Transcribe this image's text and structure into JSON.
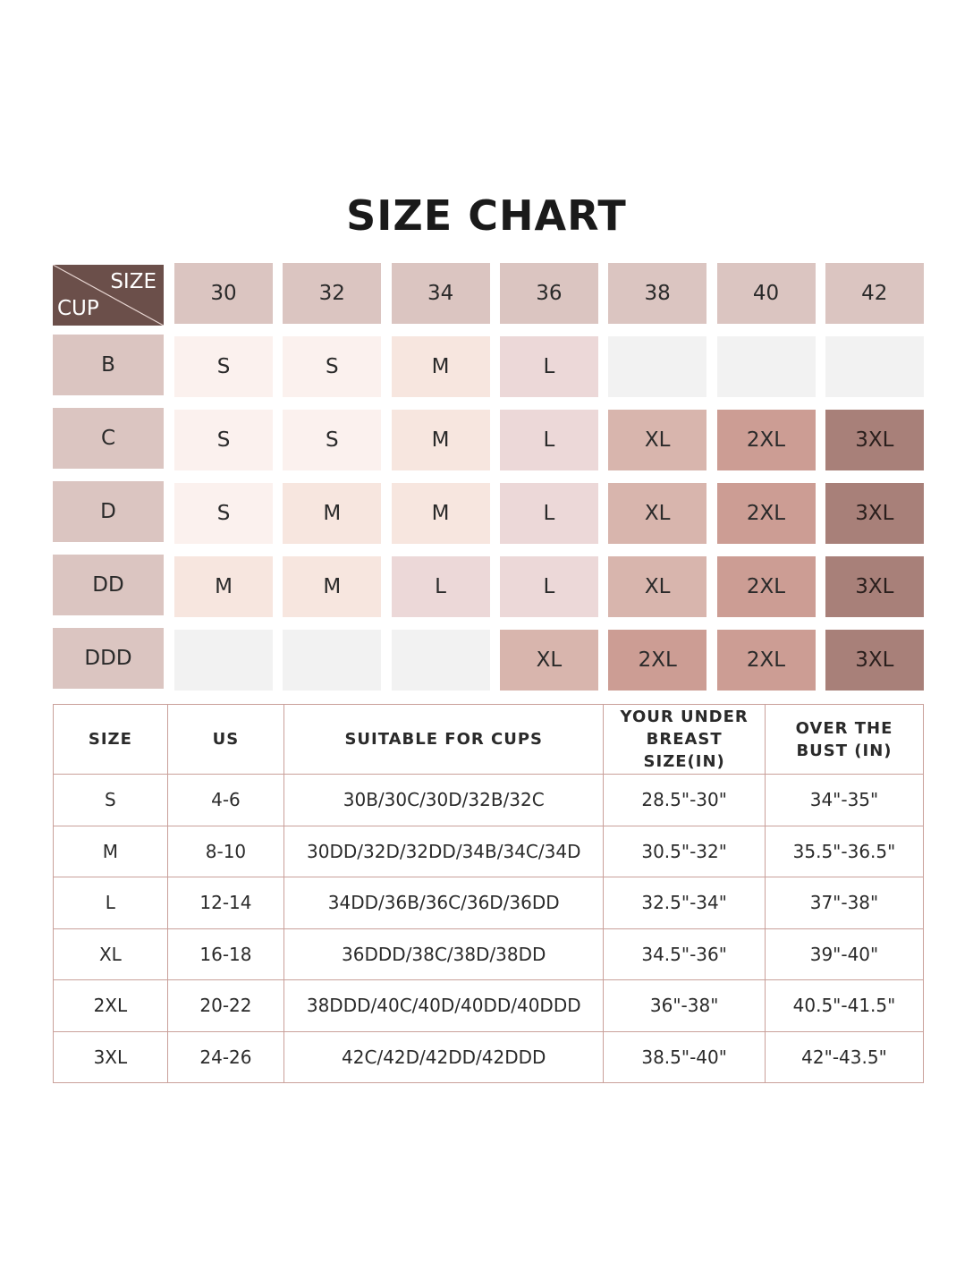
{
  "title": "SIZE CHART",
  "grid": {
    "corner_top": "SIZE",
    "corner_bottom": "CUP",
    "band_sizes": [
      "30",
      "32",
      "34",
      "36",
      "38",
      "40",
      "42"
    ],
    "cups": [
      {
        "cup": "B",
        "sizes": [
          "S",
          "S",
          "M",
          "L",
          "",
          "",
          ""
        ]
      },
      {
        "cup": "C",
        "sizes": [
          "S",
          "S",
          "M",
          "L",
          "XL",
          "2XL",
          "3XL"
        ]
      },
      {
        "cup": "D",
        "sizes": [
          "S",
          "M",
          "M",
          "L",
          "XL",
          "2XL",
          "3XL"
        ]
      },
      {
        "cup": "DD",
        "sizes": [
          "M",
          "M",
          "L",
          "L",
          "XL",
          "2XL",
          "3XL"
        ]
      },
      {
        "cup": "DDD",
        "sizes": [
          "",
          "",
          "",
          "XL",
          "2XL",
          "2XL",
          "3XL"
        ]
      }
    ],
    "colors": {
      "corner": "#6b4f4a",
      "header": "#dbc5c1",
      "S": "#fbf1ee",
      "M": "#f7e6df",
      "L": "#ecd8d8",
      "XL": "#d8b5ad",
      "2XL": "#cc9d94",
      "3XL": "#a88079",
      "empty": "#f2f2f2"
    }
  },
  "table": {
    "headers": [
      "SIZE",
      "US",
      "SUITABLE FOR CUPS",
      "YOUR UNDER\nBREAST SIZE(IN)",
      "OVER THE\nBUST (IN)"
    ],
    "rows": [
      [
        "S",
        "4-6",
        "30B/30C/30D/32B/32C",
        "28.5\"-30\"",
        "34\"-35\""
      ],
      [
        "M",
        "8-10",
        "30DD/32D/32DD/34B/34C/34D",
        "30.5\"-32\"",
        "35.5\"-36.5\""
      ],
      [
        "L",
        "12-14",
        "34DD/36B/36C/36D/36DD",
        "32.5\"-34\"",
        "37\"-38\""
      ],
      [
        "XL",
        "16-18",
        "36DDD/38C/38D/38DD",
        "34.5\"-36\"",
        "39\"-40\""
      ],
      [
        "2XL",
        "20-22",
        "38DDD/40C/40D/40DD/40DDD",
        "36\"-38\"",
        "40.5\"-41.5\""
      ],
      [
        "3XL",
        "24-26",
        "42C/42D/42DD/42DDD",
        "38.5\"-40\"",
        "42\"-43.5\""
      ]
    ]
  }
}
